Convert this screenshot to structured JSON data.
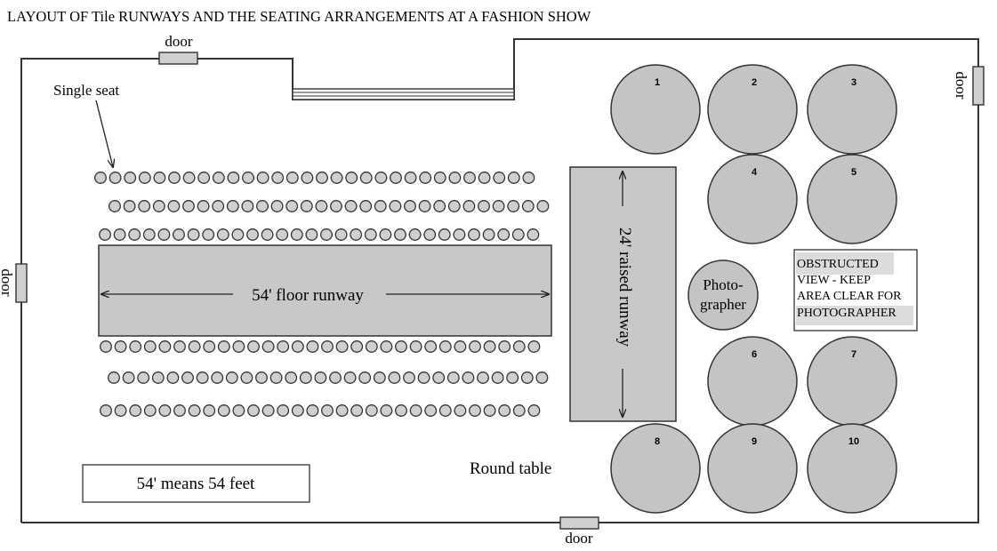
{
  "title": "LAYOUT OF Tile RUNWAYS AND THE SEATING ARRANGEMENTS AT A FASHION SHOW",
  "labels": {
    "door_top": "door",
    "door_left": "door",
    "door_right": "door",
    "door_bottom": "door",
    "single_seat": "Single seat",
    "floor_runway": "54' floor runway",
    "raised_runway": "24' raised runway",
    "photographer_line1": "Photo-",
    "photographer_line2": "grapher",
    "obstructed_line1": "OBSTRUCTED",
    "obstructed_line2": "VIEW - KEEP",
    "obstructed_line3": "AREA CLEAR FOR",
    "obstructed_line4": "PHOTOGRAPHER",
    "round_table": "Round table",
    "note": "54' means 54 feet"
  },
  "tables": [
    "1",
    "2",
    "3",
    "4",
    "5",
    "6",
    "7",
    "8",
    "9",
    "10"
  ],
  "seat_rows": {
    "above_runway": [
      30,
      30,
      30
    ],
    "below_runway": [
      30,
      30,
      30
    ]
  },
  "colors": {
    "outline": "#333333",
    "runway_fill": "#c8c8c8",
    "table_fill": "#c4c4c4",
    "seat_fill": "#cfcfcf"
  }
}
